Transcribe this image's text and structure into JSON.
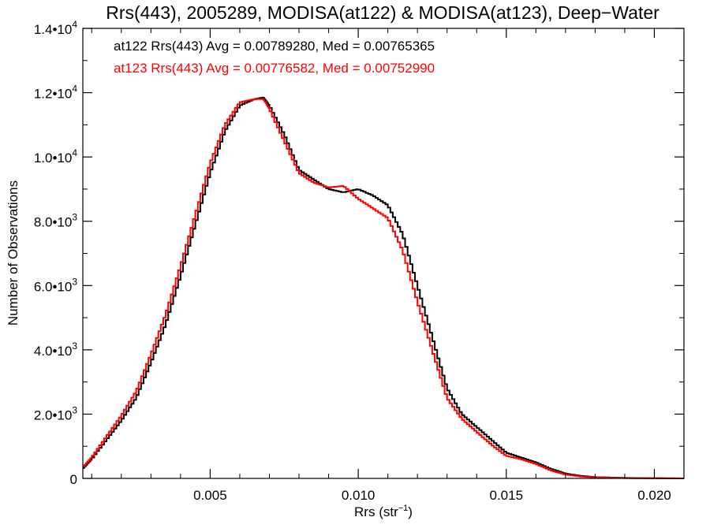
{
  "chart_data": {
    "type": "line",
    "title": "Rrs(443), 2005289, MODISA(at122) & MODISA(at123), Deep−Water",
    "xlabel": "Rrs (str",
    "xlabel_sup": "−1",
    "xlabel_close": ")",
    "ylabel": "Number of Observations",
    "xlim": [
      0.0007,
      0.021
    ],
    "ylim": [
      0,
      14000
    ],
    "grid": false,
    "x_ticks": [
      {
        "value": 0.005,
        "label": "0.005"
      },
      {
        "value": 0.01,
        "label": "0.010"
      },
      {
        "value": 0.015,
        "label": "0.015"
      },
      {
        "value": 0.02,
        "label": "0.020"
      }
    ],
    "y_ticks": [
      {
        "value": 0,
        "mant": "0",
        "exp": ""
      },
      {
        "value": 2000,
        "mant": "2.0•10",
        "exp": "3"
      },
      {
        "value": 4000,
        "mant": "4.0•10",
        "exp": "3"
      },
      {
        "value": 6000,
        "mant": "6.0•10",
        "exp": "3"
      },
      {
        "value": 8000,
        "mant": "8.0•10",
        "exp": "3"
      },
      {
        "value": 10000,
        "mant": "1.0•10",
        "exp": "4"
      },
      {
        "value": 12000,
        "mant": "1.2•10",
        "exp": "4"
      },
      {
        "value": 14000,
        "mant": "1.4•10",
        "exp": "4"
      }
    ],
    "annotations": [
      {
        "text": "at122 Rrs(443) Avg = 0.00789280, Med = 0.00765365",
        "color": "#000000"
      },
      {
        "text": "at123 Rrs(443) Avg = 0.00776582, Med = 0.00752990",
        "color": "#ff0000"
      }
    ],
    "series": [
      {
        "color": "#000000",
        "x": [
          0.0007,
          0.001,
          0.0015,
          0.002,
          0.0025,
          0.003,
          0.0035,
          0.004,
          0.0045,
          0.005,
          0.0055,
          0.006,
          0.0065,
          0.0068,
          0.007,
          0.0075,
          0.008,
          0.0085,
          0.009,
          0.0095,
          0.01,
          0.0105,
          0.011,
          0.0115,
          0.012,
          0.0125,
          0.013,
          0.0135,
          0.014,
          0.0145,
          0.015,
          0.0155,
          0.016,
          0.0165,
          0.017,
          0.0175,
          0.018,
          0.019,
          0.02,
          0.021
        ],
        "y": [
          300,
          600,
          1200,
          1800,
          2500,
          3600,
          4800,
          6300,
          7900,
          9500,
          10800,
          11600,
          11800,
          11850,
          11600,
          10700,
          9600,
          9300,
          9000,
          8900,
          9000,
          8800,
          8500,
          7600,
          6000,
          4400,
          2800,
          2000,
          1600,
          1200,
          800,
          650,
          500,
          300,
          150,
          80,
          40,
          15,
          5,
          0
        ]
      },
      {
        "color": "#ff0000",
        "x": [
          0.0007,
          0.001,
          0.0015,
          0.002,
          0.0025,
          0.003,
          0.0035,
          0.004,
          0.0045,
          0.005,
          0.0055,
          0.006,
          0.0065,
          0.0068,
          0.007,
          0.0075,
          0.008,
          0.0085,
          0.009,
          0.0095,
          0.01,
          0.0105,
          0.011,
          0.0115,
          0.012,
          0.0125,
          0.013,
          0.0135,
          0.014,
          0.0145,
          0.015,
          0.0155,
          0.016,
          0.0165,
          0.017,
          0.0175,
          0.018,
          0.019,
          0.02,
          0.021
        ],
        "y": [
          350,
          650,
          1300,
          1950,
          2700,
          3850,
          5100,
          6600,
          8200,
          9800,
          11000,
          11700,
          11800,
          11800,
          11500,
          10500,
          9500,
          9200,
          9050,
          9100,
          8700,
          8400,
          8100,
          7100,
          5500,
          4000,
          2500,
          1850,
          1450,
          1050,
          700,
          600,
          450,
          250,
          120,
          60,
          30,
          10,
          3,
          0
        ]
      }
    ]
  }
}
